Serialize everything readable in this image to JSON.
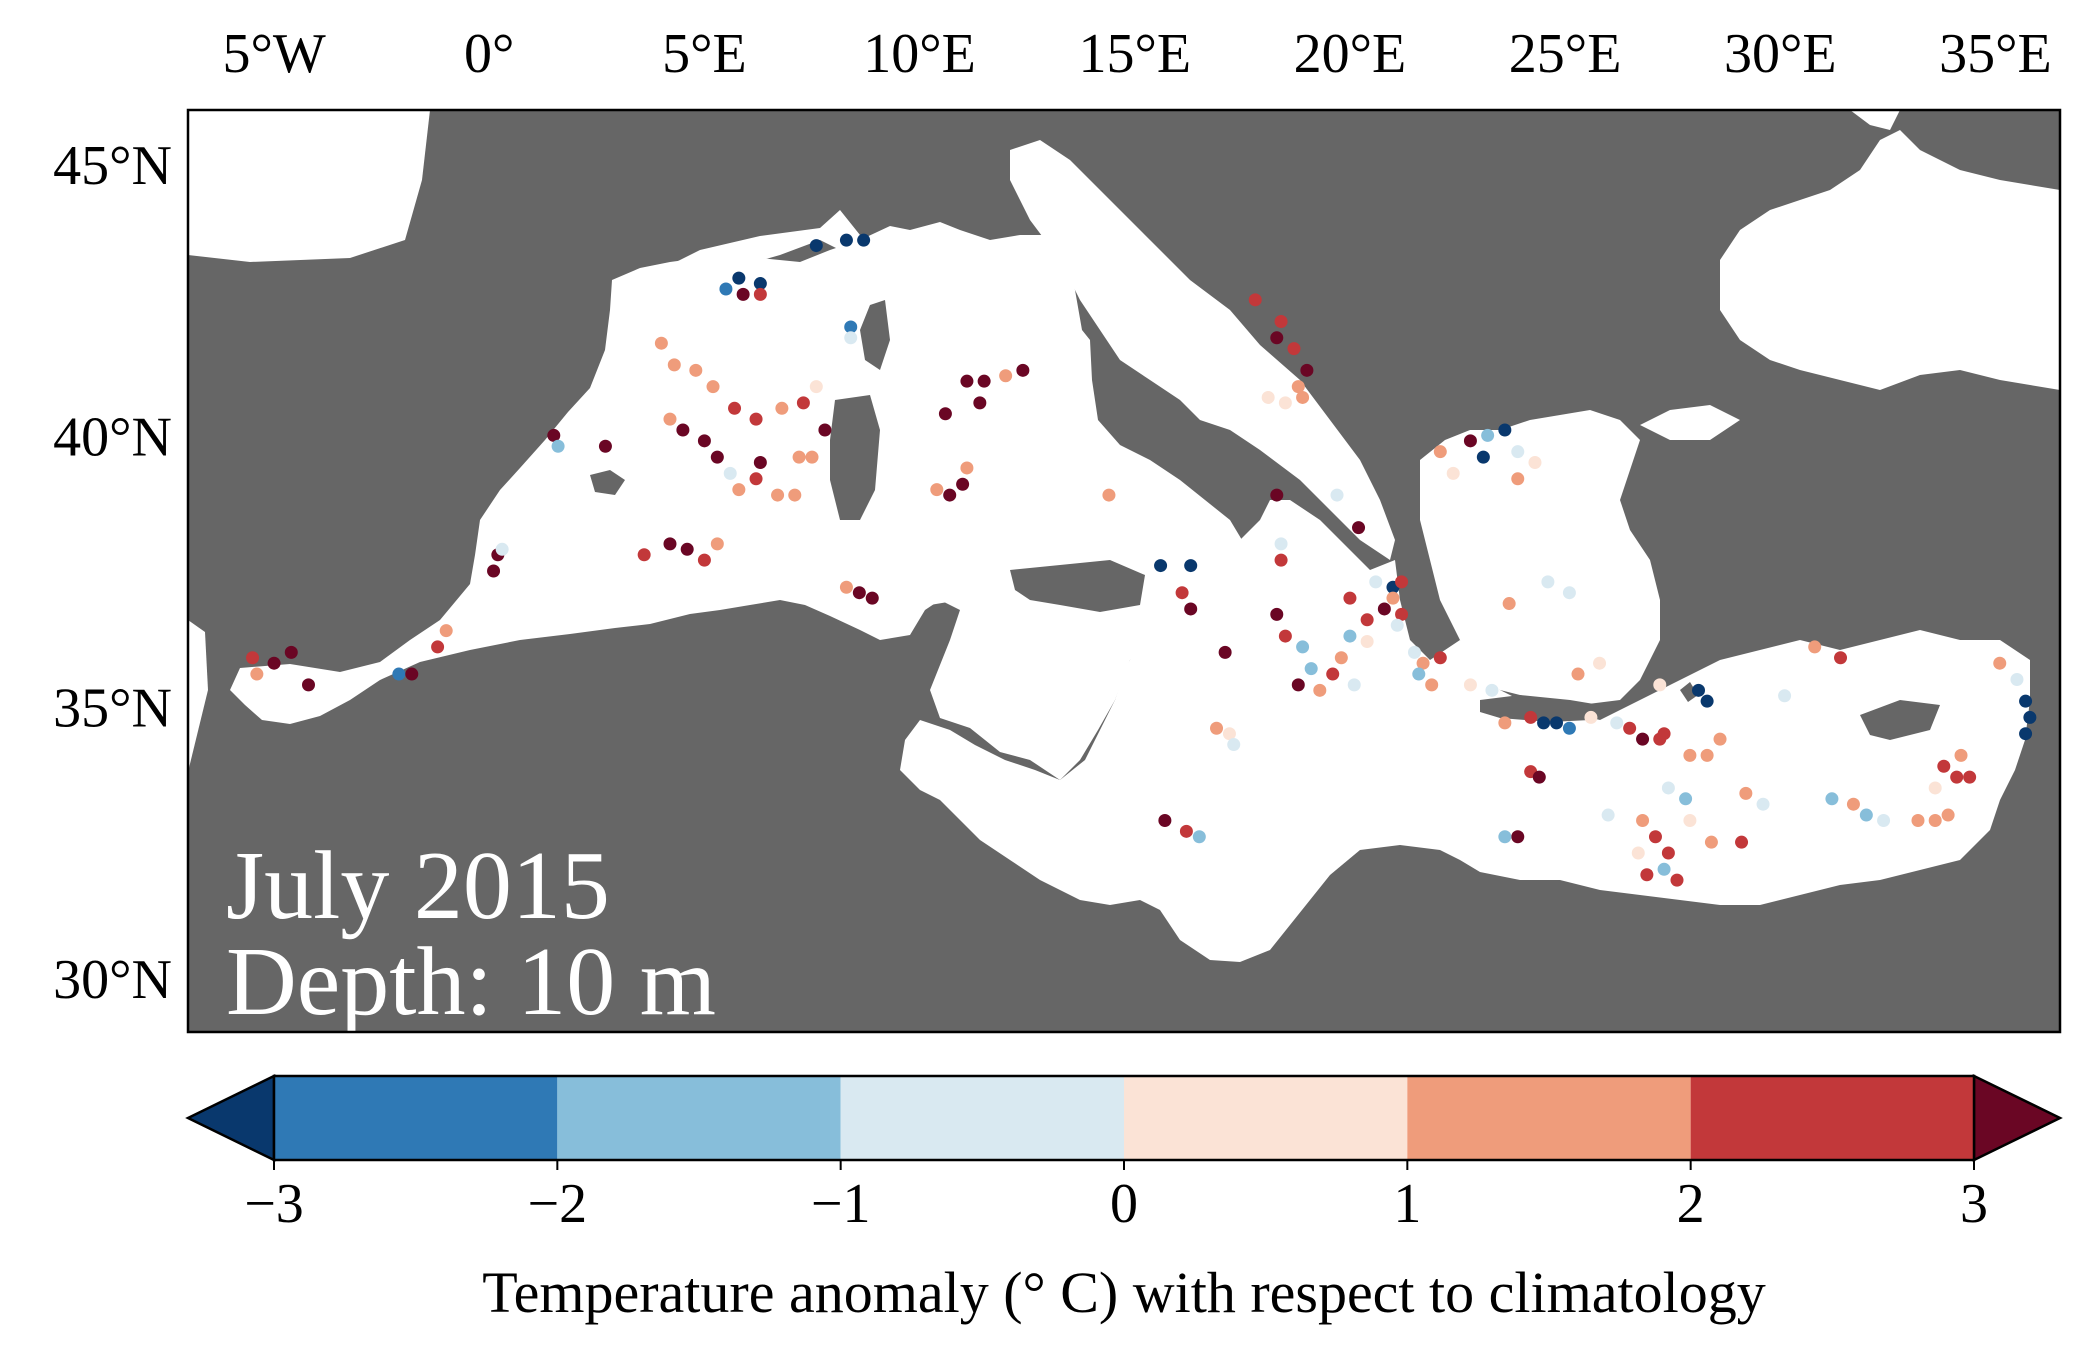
{
  "map": {
    "title_line1": "July 2015",
    "title_line2": "Depth: 10 m",
    "lon_range": [
      -7,
      36.5
    ],
    "lat_range": [
      29,
      46
    ],
    "lon_ticks": [
      {
        "value": -5,
        "label": "5°W"
      },
      {
        "value": 0,
        "label": "0°"
      },
      {
        "value": 5,
        "label": "5°E"
      },
      {
        "value": 10,
        "label": "10°E"
      },
      {
        "value": 15,
        "label": "15°E"
      },
      {
        "value": 20,
        "label": "20°E"
      },
      {
        "value": 25,
        "label": "25°E"
      },
      {
        "value": 30,
        "label": "30°E"
      },
      {
        "value": 35,
        "label": "35°E"
      }
    ],
    "lat_ticks": [
      {
        "value": 45,
        "label": "45°N"
      },
      {
        "value": 40,
        "label": "40°N"
      },
      {
        "value": 35,
        "label": "35°N"
      },
      {
        "value": 30,
        "label": "30°N"
      }
    ],
    "colors": {
      "land": "#666666",
      "sea": "#ffffff"
    },
    "region": "Mediterranean Sea",
    "observations": [
      {
        "lon": -5.5,
        "lat": 35.9,
        "anomaly": 2.5
      },
      {
        "lon": -5.0,
        "lat": 35.8,
        "anomaly": 3.2
      },
      {
        "lon": -4.6,
        "lat": 36.0,
        "anomaly": 3.1
      },
      {
        "lon": -4.2,
        "lat": 35.4,
        "anomaly": 3.4
      },
      {
        "lon": -5.4,
        "lat": 35.6,
        "anomaly": 1.5
      },
      {
        "lon": -2.1,
        "lat": 35.6,
        "anomaly": -2.5
      },
      {
        "lon": -1.8,
        "lat": 35.6,
        "anomaly": 3.2
      },
      {
        "lon": -1.2,
        "lat": 36.1,
        "anomaly": 2.4
      },
      {
        "lon": -1.0,
        "lat": 36.4,
        "anomaly": 1.2
      },
      {
        "lon": 0.2,
        "lat": 37.8,
        "anomaly": 3.3
      },
      {
        "lon": 0.1,
        "lat": 37.5,
        "anomaly": 3.5
      },
      {
        "lon": 0.3,
        "lat": 37.9,
        "anomaly": -0.5
      },
      {
        "lon": 1.5,
        "lat": 40.0,
        "anomaly": 3.1
      },
      {
        "lon": 1.6,
        "lat": 39.8,
        "anomaly": -1.5
      },
      {
        "lon": 2.7,
        "lat": 39.8,
        "anomaly": 3.0
      },
      {
        "lon": 4.0,
        "lat": 41.7,
        "anomaly": 1.6
      },
      {
        "lon": 4.3,
        "lat": 41.3,
        "anomaly": 1.3
      },
      {
        "lon": 4.8,
        "lat": 41.2,
        "anomaly": 1.8
      },
      {
        "lon": 5.2,
        "lat": 40.9,
        "anomaly": 1.5
      },
      {
        "lon": 5.7,
        "lat": 40.5,
        "anomaly": 2.5
      },
      {
        "lon": 4.2,
        "lat": 40.3,
        "anomaly": 1.3
      },
      {
        "lon": 4.5,
        "lat": 40.1,
        "anomaly": 3.2
      },
      {
        "lon": 5.0,
        "lat": 39.9,
        "anomaly": 3.0
      },
      {
        "lon": 5.3,
        "lat": 39.6,
        "anomaly": 3.4
      },
      {
        "lon": 6.2,
        "lat": 40.3,
        "anomaly": 2.2
      },
      {
        "lon": 6.8,
        "lat": 40.5,
        "anomaly": 1.5
      },
      {
        "lon": 7.3,
        "lat": 40.6,
        "anomaly": 2.1
      },
      {
        "lon": 7.6,
        "lat": 40.9,
        "anomaly": 0.4
      },
      {
        "lon": 7.2,
        "lat": 39.6,
        "anomaly": 1.4
      },
      {
        "lon": 7.5,
        "lat": 39.6,
        "anomaly": 1.2
      },
      {
        "lon": 7.8,
        "lat": 40.1,
        "anomaly": 3.3
      },
      {
        "lon": 5.6,
        "lat": 39.3,
        "anomaly": -0.6
      },
      {
        "lon": 5.8,
        "lat": 39.0,
        "anomaly": 1.6
      },
      {
        "lon": 6.2,
        "lat": 39.2,
        "anomaly": 2.6
      },
      {
        "lon": 6.3,
        "lat": 39.5,
        "anomaly": 3.5
      },
      {
        "lon": 6.7,
        "lat": 38.9,
        "anomaly": 1.4
      },
      {
        "lon": 7.1,
        "lat": 38.9,
        "anomaly": 1.7
      },
      {
        "lon": 3.6,
        "lat": 37.8,
        "anomaly": 2.3
      },
      {
        "lon": 4.2,
        "lat": 38.0,
        "anomaly": 3.2
      },
      {
        "lon": 4.6,
        "lat": 37.9,
        "anomaly": 3.4
      },
      {
        "lon": 5.0,
        "lat": 37.7,
        "anomaly": 2.1
      },
      {
        "lon": 5.3,
        "lat": 38.0,
        "anomaly": 1.3
      },
      {
        "lon": 5.5,
        "lat": 42.7,
        "anomaly": -2.4
      },
      {
        "lon": 5.8,
        "lat": 42.9,
        "anomaly": -3.3
      },
      {
        "lon": 6.3,
        "lat": 42.8,
        "anomaly": -3.1
      },
      {
        "lon": 5.9,
        "lat": 42.6,
        "anomaly": 3.1
      },
      {
        "lon": 6.3,
        "lat": 42.6,
        "anomaly": 2.6
      },
      {
        "lon": 7.6,
        "lat": 43.5,
        "anomaly": -3.3
      },
      {
        "lon": 8.3,
        "lat": 43.6,
        "anomaly": -3.2
      },
      {
        "lon": 8.7,
        "lat": 43.6,
        "anomaly": -3.1
      },
      {
        "lon": 8.4,
        "lat": 42.0,
        "anomaly": -2.9
      },
      {
        "lon": 8.4,
        "lat": 41.8,
        "anomaly": -0.5
      },
      {
        "lon": 8.3,
        "lat": 37.2,
        "anomaly": 1.5
      },
      {
        "lon": 8.6,
        "lat": 37.1,
        "anomaly": 3.0
      },
      {
        "lon": 8.9,
        "lat": 37.0,
        "anomaly": 3.3
      },
      {
        "lon": 10.4,
        "lat": 39.0,
        "anomaly": 1.5
      },
      {
        "lon": 10.7,
        "lat": 38.9,
        "anomaly": 3.3
      },
      {
        "lon": 11.0,
        "lat": 39.1,
        "anomaly": 3.1
      },
      {
        "lon": 11.1,
        "lat": 39.4,
        "anomaly": 1.3
      },
      {
        "lon": 10.6,
        "lat": 40.4,
        "anomaly": 3.2
      },
      {
        "lon": 11.1,
        "lat": 41.0,
        "anomaly": 3.4
      },
      {
        "lon": 11.5,
        "lat": 41.0,
        "anomaly": 3.5
      },
      {
        "lon": 11.4,
        "lat": 40.6,
        "anomaly": 3.3
      },
      {
        "lon": 12.0,
        "lat": 41.1,
        "anomaly": 1.2
      },
      {
        "lon": 12.4,
        "lat": 41.2,
        "anomaly": 3.4
      },
      {
        "lon": 14.4,
        "lat": 38.9,
        "anomaly": 1.2
      },
      {
        "lon": 15.6,
        "lat": 37.6,
        "anomaly": -3.3
      },
      {
        "lon": 16.3,
        "lat": 37.6,
        "anomaly": -3.2
      },
      {
        "lon": 16.1,
        "lat": 37.1,
        "anomaly": 2.7
      },
      {
        "lon": 16.3,
        "lat": 36.8,
        "anomaly": 3.1
      },
      {
        "lon": 17.1,
        "lat": 36.0,
        "anomaly": 3.3
      },
      {
        "lon": 16.9,
        "lat": 34.6,
        "anomaly": 1.5
      },
      {
        "lon": 17.2,
        "lat": 34.5,
        "anomaly": 0.4
      },
      {
        "lon": 17.3,
        "lat": 34.3,
        "anomaly": -0.4
      },
      {
        "lon": 15.7,
        "lat": 32.9,
        "anomaly": 3.2
      },
      {
        "lon": 16.2,
        "lat": 32.7,
        "anomaly": 2.5
      },
      {
        "lon": 16.5,
        "lat": 32.6,
        "anomaly": -1.4
      },
      {
        "lon": 17.8,
        "lat": 42.5,
        "anomaly": 2.6
      },
      {
        "lon": 18.4,
        "lat": 42.1,
        "anomaly": 2.5
      },
      {
        "lon": 18.3,
        "lat": 41.8,
        "anomaly": 3.2
      },
      {
        "lon": 18.7,
        "lat": 41.6,
        "anomaly": 2.3
      },
      {
        "lon": 19.0,
        "lat": 41.2,
        "anomaly": 3.1
      },
      {
        "lon": 18.8,
        "lat": 40.9,
        "anomaly": 1.6
      },
      {
        "lon": 18.1,
        "lat": 40.7,
        "anomaly": 0.3
      },
      {
        "lon": 18.5,
        "lat": 40.6,
        "anomaly": 0.5
      },
      {
        "lon": 18.9,
        "lat": 40.7,
        "anomaly": 1.5
      },
      {
        "lon": 18.3,
        "lat": 38.9,
        "anomaly": 3.1
      },
      {
        "lon": 18.4,
        "lat": 38.0,
        "anomaly": -0.6
      },
      {
        "lon": 18.4,
        "lat": 37.7,
        "anomaly": 2.5
      },
      {
        "lon": 18.3,
        "lat": 36.7,
        "anomaly": 3.2
      },
      {
        "lon": 18.5,
        "lat": 36.3,
        "anomaly": 2.2
      },
      {
        "lon": 18.9,
        "lat": 36.1,
        "anomaly": -1.2
      },
      {
        "lon": 19.1,
        "lat": 35.7,
        "anomaly": -1.5
      },
      {
        "lon": 18.8,
        "lat": 35.4,
        "anomaly": 3.2
      },
      {
        "lon": 19.3,
        "lat": 35.3,
        "anomaly": 1.3
      },
      {
        "lon": 19.6,
        "lat": 35.6,
        "anomaly": 2.4
      },
      {
        "lon": 19.8,
        "lat": 35.9,
        "anomaly": 1.5
      },
      {
        "lon": 20.1,
        "lat": 35.4,
        "anomaly": -0.4
      },
      {
        "lon": 19.7,
        "lat": 38.9,
        "anomaly": -0.4
      },
      {
        "lon": 20.2,
        "lat": 38.3,
        "anomaly": 3.3
      },
      {
        "lon": 20.0,
        "lat": 37.0,
        "anomaly": 2.4
      },
      {
        "lon": 20.4,
        "lat": 36.6,
        "anomaly": 2.5
      },
      {
        "lon": 20.0,
        "lat": 36.3,
        "anomaly": -1.3
      },
      {
        "lon": 20.4,
        "lat": 36.2,
        "anomaly": 0.4
      },
      {
        "lon": 20.8,
        "lat": 36.8,
        "anomaly": 3.0
      },
      {
        "lon": 21.0,
        "lat": 37.2,
        "anomaly": -3.1
      },
      {
        "lon": 21.2,
        "lat": 36.7,
        "anomaly": 2.3
      },
      {
        "lon": 20.6,
        "lat": 37.3,
        "anomaly": -0.3
      },
      {
        "lon": 21.0,
        "lat": 37.0,
        "anomaly": 1.4
      },
      {
        "lon": 21.1,
        "lat": 36.5,
        "anomaly": -0.6
      },
      {
        "lon": 21.5,
        "lat": 36.0,
        "anomaly": -0.3
      },
      {
        "lon": 21.7,
        "lat": 35.8,
        "anomaly": 1.4
      },
      {
        "lon": 22.1,
        "lat": 35.9,
        "anomaly": 2.1
      },
      {
        "lon": 21.9,
        "lat": 35.4,
        "anomaly": 1.6
      },
      {
        "lon": 21.6,
        "lat": 35.6,
        "anomaly": -1.4
      },
      {
        "lon": 22.8,
        "lat": 35.4,
        "anomaly": 0.3
      },
      {
        "lon": 23.3,
        "lat": 35.3,
        "anomaly": -0.6
      },
      {
        "lon": 23.6,
        "lat": 34.7,
        "anomaly": 1.5
      },
      {
        "lon": 24.2,
        "lat": 34.8,
        "anomaly": 2.3
      },
      {
        "lon": 24.5,
        "lat": 34.7,
        "anomaly": -3.3
      },
      {
        "lon": 24.8,
        "lat": 34.7,
        "anomaly": -3.1
      },
      {
        "lon": 25.1,
        "lat": 34.6,
        "anomaly": -3.0
      },
      {
        "lon": 24.2,
        "lat": 33.8,
        "anomaly": 2.5
      },
      {
        "lon": 24.4,
        "lat": 33.7,
        "anomaly": 3.1
      },
      {
        "lon": 23.9,
        "lat": 32.6,
        "anomaly": 3.2
      },
      {
        "lon": 23.6,
        "lat": 32.6,
        "anomaly": -1.4
      },
      {
        "lon": 23.7,
        "lat": 36.9,
        "anomaly": 1.4
      },
      {
        "lon": 24.6,
        "lat": 37.3,
        "anomaly": -0.5
      },
      {
        "lon": 25.1,
        "lat": 37.1,
        "anomaly": -0.4
      },
      {
        "lon": 25.3,
        "lat": 35.6,
        "anomaly": 1.5
      },
      {
        "lon": 25.8,
        "lat": 35.8,
        "anomaly": 0.4
      },
      {
        "lon": 25.6,
        "lat": 34.8,
        "anomaly": 0.5
      },
      {
        "lon": 26.2,
        "lat": 34.7,
        "anomaly": -0.6
      },
      {
        "lon": 26.5,
        "lat": 34.6,
        "anomaly": 2.4
      },
      {
        "lon": 26.8,
        "lat": 34.4,
        "anomaly": 3.3
      },
      {
        "lon": 27.2,
        "lat": 34.4,
        "anomaly": 2.6
      },
      {
        "lon": 27.2,
        "lat": 35.4,
        "anomaly": 0.3
      },
      {
        "lon": 27.3,
        "lat": 34.5,
        "anomaly": 2.2
      },
      {
        "lon": 26.0,
        "lat": 33.0,
        "anomaly": -0.4
      },
      {
        "lon": 26.8,
        "lat": 32.9,
        "anomaly": 1.5
      },
      {
        "lon": 27.1,
        "lat": 32.6,
        "anomaly": 2.5
      },
      {
        "lon": 27.4,
        "lat": 32.3,
        "anomaly": 2.2
      },
      {
        "lon": 27.3,
        "lat": 32.0,
        "anomaly": -1.5
      },
      {
        "lon": 26.7,
        "lat": 32.3,
        "anomaly": 0.3
      },
      {
        "lon": 26.9,
        "lat": 31.9,
        "anomaly": 2.4
      },
      {
        "lon": 27.6,
        "lat": 31.8,
        "anomaly": 2.3
      },
      {
        "lon": 27.8,
        "lat": 33.3,
        "anomaly": -1.3
      },
      {
        "lon": 27.4,
        "lat": 33.5,
        "anomaly": -0.5
      },
      {
        "lon": 27.9,
        "lat": 34.1,
        "anomaly": 1.3
      },
      {
        "lon": 28.3,
        "lat": 34.1,
        "anomaly": 1.4
      },
      {
        "lon": 28.6,
        "lat": 34.4,
        "anomaly": 1.6
      },
      {
        "lon": 28.1,
        "lat": 35.3,
        "anomaly": -3.3
      },
      {
        "lon": 28.3,
        "lat": 35.1,
        "anomaly": -3.2
      },
      {
        "lon": 27.9,
        "lat": 32.9,
        "anomaly": 0.4
      },
      {
        "lon": 28.4,
        "lat": 32.5,
        "anomaly": 1.5
      },
      {
        "lon": 29.1,
        "lat": 32.5,
        "anomaly": 2.5
      },
      {
        "lon": 29.2,
        "lat": 33.4,
        "anomaly": 1.3
      },
      {
        "lon": 29.6,
        "lat": 33.2,
        "anomaly": -0.4
      },
      {
        "lon": 30.1,
        "lat": 35.2,
        "anomaly": -0.5
      },
      {
        "lon": 30.8,
        "lat": 36.1,
        "anomaly": 1.4
      },
      {
        "lon": 31.4,
        "lat": 35.9,
        "anomaly": 2.4
      },
      {
        "lon": 31.2,
        "lat": 33.3,
        "anomaly": -1.3
      },
      {
        "lon": 31.7,
        "lat": 33.2,
        "anomaly": 1.5
      },
      {
        "lon": 32.0,
        "lat": 33.0,
        "anomaly": -1.4
      },
      {
        "lon": 32.4,
        "lat": 32.9,
        "anomaly": -0.6
      },
      {
        "lon": 33.2,
        "lat": 32.9,
        "anomaly": 1.3
      },
      {
        "lon": 33.6,
        "lat": 32.9,
        "anomaly": 1.6
      },
      {
        "lon": 33.9,
        "lat": 33.0,
        "anomaly": 1.2
      },
      {
        "lon": 33.8,
        "lat": 33.9,
        "anomaly": 2.5
      },
      {
        "lon": 34.1,
        "lat": 33.7,
        "anomaly": 2.3
      },
      {
        "lon": 34.2,
        "lat": 34.1,
        "anomaly": 1.5
      },
      {
        "lon": 34.4,
        "lat": 33.7,
        "anomaly": 2.6
      },
      {
        "lon": 35.7,
        "lat": 35.1,
        "anomaly": -3.3
      },
      {
        "lon": 35.8,
        "lat": 34.8,
        "anomaly": -3.2
      },
      {
        "lon": 35.7,
        "lat": 34.5,
        "anomaly": -3.1
      },
      {
        "lon": 35.5,
        "lat": 35.5,
        "anomaly": -0.4
      },
      {
        "lon": 35.1,
        "lat": 35.8,
        "anomaly": 1.3
      },
      {
        "lon": 33.6,
        "lat": 33.5,
        "anomaly": 0.3
      },
      {
        "lon": 22.1,
        "lat": 39.7,
        "anomaly": 1.4
      },
      {
        "lon": 22.4,
        "lat": 39.3,
        "anomaly": 0.4
      },
      {
        "lon": 22.8,
        "lat": 39.9,
        "anomaly": 3.2
      },
      {
        "lon": 23.2,
        "lat": 40.0,
        "anomaly": -1.3
      },
      {
        "lon": 23.6,
        "lat": 40.1,
        "anomaly": -3.1
      },
      {
        "lon": 23.1,
        "lat": 39.6,
        "anomaly": -3.3
      },
      {
        "lon": 23.9,
        "lat": 39.2,
        "anomaly": 1.5
      },
      {
        "lon": 24.3,
        "lat": 39.5,
        "anomaly": 0.5
      },
      {
        "lon": 23.9,
        "lat": 39.7,
        "anomaly": -0.3
      },
      {
        "lon": 21.2,
        "lat": 37.3,
        "anomaly": 2.6
      }
    ]
  },
  "colorbar": {
    "label": "Temperature anomaly (° C) with respect to climatology",
    "vmin": -3,
    "vmax": 3,
    "ticks": [
      {
        "value": -3,
        "label": "−3"
      },
      {
        "value": -2,
        "label": "−2"
      },
      {
        "value": -1,
        "label": "−1"
      },
      {
        "value": 0,
        "label": "0"
      },
      {
        "value": 1,
        "label": "1"
      },
      {
        "value": 2,
        "label": "2"
      },
      {
        "value": 3,
        "label": "3"
      }
    ],
    "bins": [
      {
        "from": -3,
        "to": -2,
        "color": "#2f79b5"
      },
      {
        "from": -2,
        "to": -1,
        "color": "#87beda"
      },
      {
        "from": -1,
        "to": 0,
        "color": "#d9e9f1"
      },
      {
        "from": 0,
        "to": 1,
        "color": "#fbe3d6"
      },
      {
        "from": 1,
        "to": 2,
        "color": "#ef9c7b"
      },
      {
        "from": 2,
        "to": 3,
        "color": "#c2383a"
      }
    ],
    "under_color": "#09386d",
    "over_color": "#6a0624",
    "extend": "both"
  }
}
